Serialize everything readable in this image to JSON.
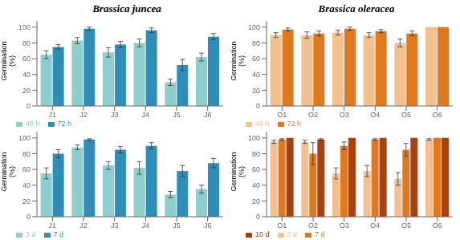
{
  "chart_data": [
    {
      "type": "bar",
      "title": "Brassica juncea",
      "y_label": "Germination\n(%)",
      "categories": [
        "J1",
        "J2",
        "J3",
        "J4",
        "J5",
        "J6"
      ],
      "series": [
        {
          "name": "48 h",
          "color": "#8ecece",
          "values": [
            65,
            83,
            68,
            80,
            30,
            62
          ],
          "errors": [
            5,
            4,
            6,
            5,
            4,
            5
          ]
        },
        {
          "name": "72 h",
          "color": "#2e8eb8",
          "values": [
            75,
            98,
            78,
            96,
            52,
            88
          ],
          "errors": [
            3,
            2,
            4,
            3,
            7,
            4
          ]
        }
      ],
      "ylim": [
        0,
        108
      ],
      "yticks": [
        0,
        20,
        40,
        60,
        80,
        100
      ],
      "grid": false,
      "legend": "lower left"
    },
    {
      "type": "bar",
      "title": "Brassica oleracea",
      "y_label": "Germination\n(%)",
      "categories": [
        "O1",
        "O2",
        "O3",
        "O4",
        "O5",
        "O6"
      ],
      "series": [
        {
          "name": "48 h",
          "color": "#f5c090",
          "values": [
            90,
            90,
            93,
            90,
            80,
            100
          ],
          "errors": [
            3,
            4,
            3,
            3,
            5,
            0
          ]
        },
        {
          "name": "72 h",
          "color": "#e07820",
          "values": [
            97,
            92,
            98,
            95,
            92,
            100
          ],
          "errors": [
            2,
            3,
            2,
            2,
            3,
            0
          ]
        }
      ],
      "ylim": [
        0,
        108
      ],
      "yticks": [
        0,
        20,
        40,
        60,
        80,
        100
      ],
      "grid": false,
      "legend": "lower left"
    },
    {
      "type": "bar",
      "y_label": "Germination\n(%)",
      "categories": [
        "J1",
        "J2",
        "J3",
        "J4",
        "J5",
        "J6"
      ],
      "series": [
        {
          "name": "3 d",
          "color": "#8ecece",
          "values": [
            55,
            88,
            65,
            62,
            28,
            35
          ],
          "errors": [
            7,
            3,
            5,
            8,
            4,
            5
          ]
        },
        {
          "name": "7 d",
          "color": "#2e8eb8",
          "values": [
            80,
            98,
            85,
            90,
            58,
            68
          ],
          "errors": [
            5,
            1,
            4,
            4,
            7,
            6
          ]
        }
      ],
      "ylim": [
        0,
        108
      ],
      "yticks": [
        0,
        20,
        40,
        60,
        80,
        100
      ],
      "grid": false,
      "legend": "lower left"
    },
    {
      "type": "bar",
      "y_label": "Germination\n(%)",
      "categories": [
        "O1",
        "O2",
        "O3",
        "O4",
        "O5",
        "O6"
      ],
      "series": [
        {
          "name": "3 d",
          "color": "#f5c090",
          "values": [
            95,
            95,
            55,
            58,
            48,
            98
          ],
          "errors": [
            2,
            2,
            7,
            7,
            8,
            1
          ]
        },
        {
          "name": "7 d",
          "color": "#e07820",
          "values": [
            98,
            80,
            90,
            98,
            85,
            100
          ],
          "errors": [
            1,
            14,
            5,
            1,
            8,
            0
          ]
        },
        {
          "name": "10 d",
          "color": "#a84010",
          "values": [
            100,
            98,
            100,
            100,
            100,
            100
          ],
          "errors": [
            0,
            1,
            0,
            0,
            0,
            0
          ]
        }
      ],
      "ylim": [
        0,
        108
      ],
      "yticks": [
        0,
        20,
        40,
        60,
        80,
        100
      ],
      "grid": false,
      "legend": "lower left"
    }
  ]
}
